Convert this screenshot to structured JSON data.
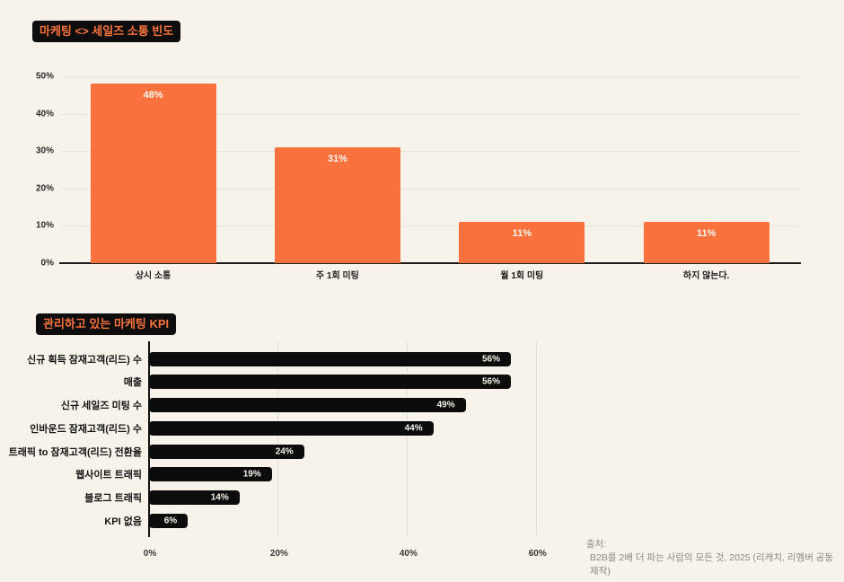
{
  "colors": {
    "background": "#F7F3EA",
    "badge_bg": "#0D0D0D",
    "badge_text": "#F9723E",
    "bar_orange": "#F9723E",
    "bar_black": "#0C0C0C",
    "gridline": "#E7E3D8",
    "axis_line": "#1A1A1A",
    "value_label_text": "#FFFFFF",
    "source_text": "#8E897F"
  },
  "source": {
    "line1": "출처:",
    "line2": "B2B를 2배 더 파는 사람의 모든 것, 2025 (리캐치, 리멤버 공동 제작)"
  },
  "chart_data": [
    {
      "type": "bar",
      "orientation": "vertical",
      "title": "마케팅 <> 세일즈 소통 빈도",
      "categories": [
        "상시 소통",
        "주 1회 미팅",
        "월 1회 미팅",
        "하지 않는다."
      ],
      "values": [
        48,
        31,
        11,
        11
      ],
      "value_labels": [
        "48%",
        "31%",
        "11%",
        "11%"
      ],
      "xlabel": "",
      "ylabel": "",
      "ylim": [
        0,
        50
      ],
      "ytick_values": [
        0,
        10,
        20,
        30,
        40,
        50
      ],
      "ytick_labels": [
        "0%",
        "10%",
        "20%",
        "30%",
        "40%",
        "50%"
      ],
      "grid": "horizontal",
      "legend": "none",
      "bar_color": "#F9723E"
    },
    {
      "type": "bar",
      "orientation": "horizontal",
      "title": "관리하고 있는 마케팅 KPI",
      "categories": [
        "신규 획득 잠재고객(리드) 수",
        "매출",
        "신규 세일즈 미팅 수",
        "인바운드 잠재고객(리드) 수",
        "트래픽 to 잠재고객(리드) 전환율",
        "웹사이트 트래픽",
        "블로그 트래픽",
        "KPI 없음"
      ],
      "values": [
        56,
        56,
        49,
        44,
        24,
        19,
        14,
        6
      ],
      "value_labels": [
        "56%",
        "56%",
        "49%",
        "44%",
        "24%",
        "19%",
        "14%",
        "6%"
      ],
      "xlabel": "",
      "ylabel": "",
      "xlim": [
        0,
        60
      ],
      "xtick_values": [
        0,
        20,
        40,
        60
      ],
      "xtick_labels": [
        "0%",
        "20%",
        "40%",
        "60%"
      ],
      "grid": "vertical",
      "legend": "none",
      "bar_color": "#0C0C0C"
    }
  ]
}
